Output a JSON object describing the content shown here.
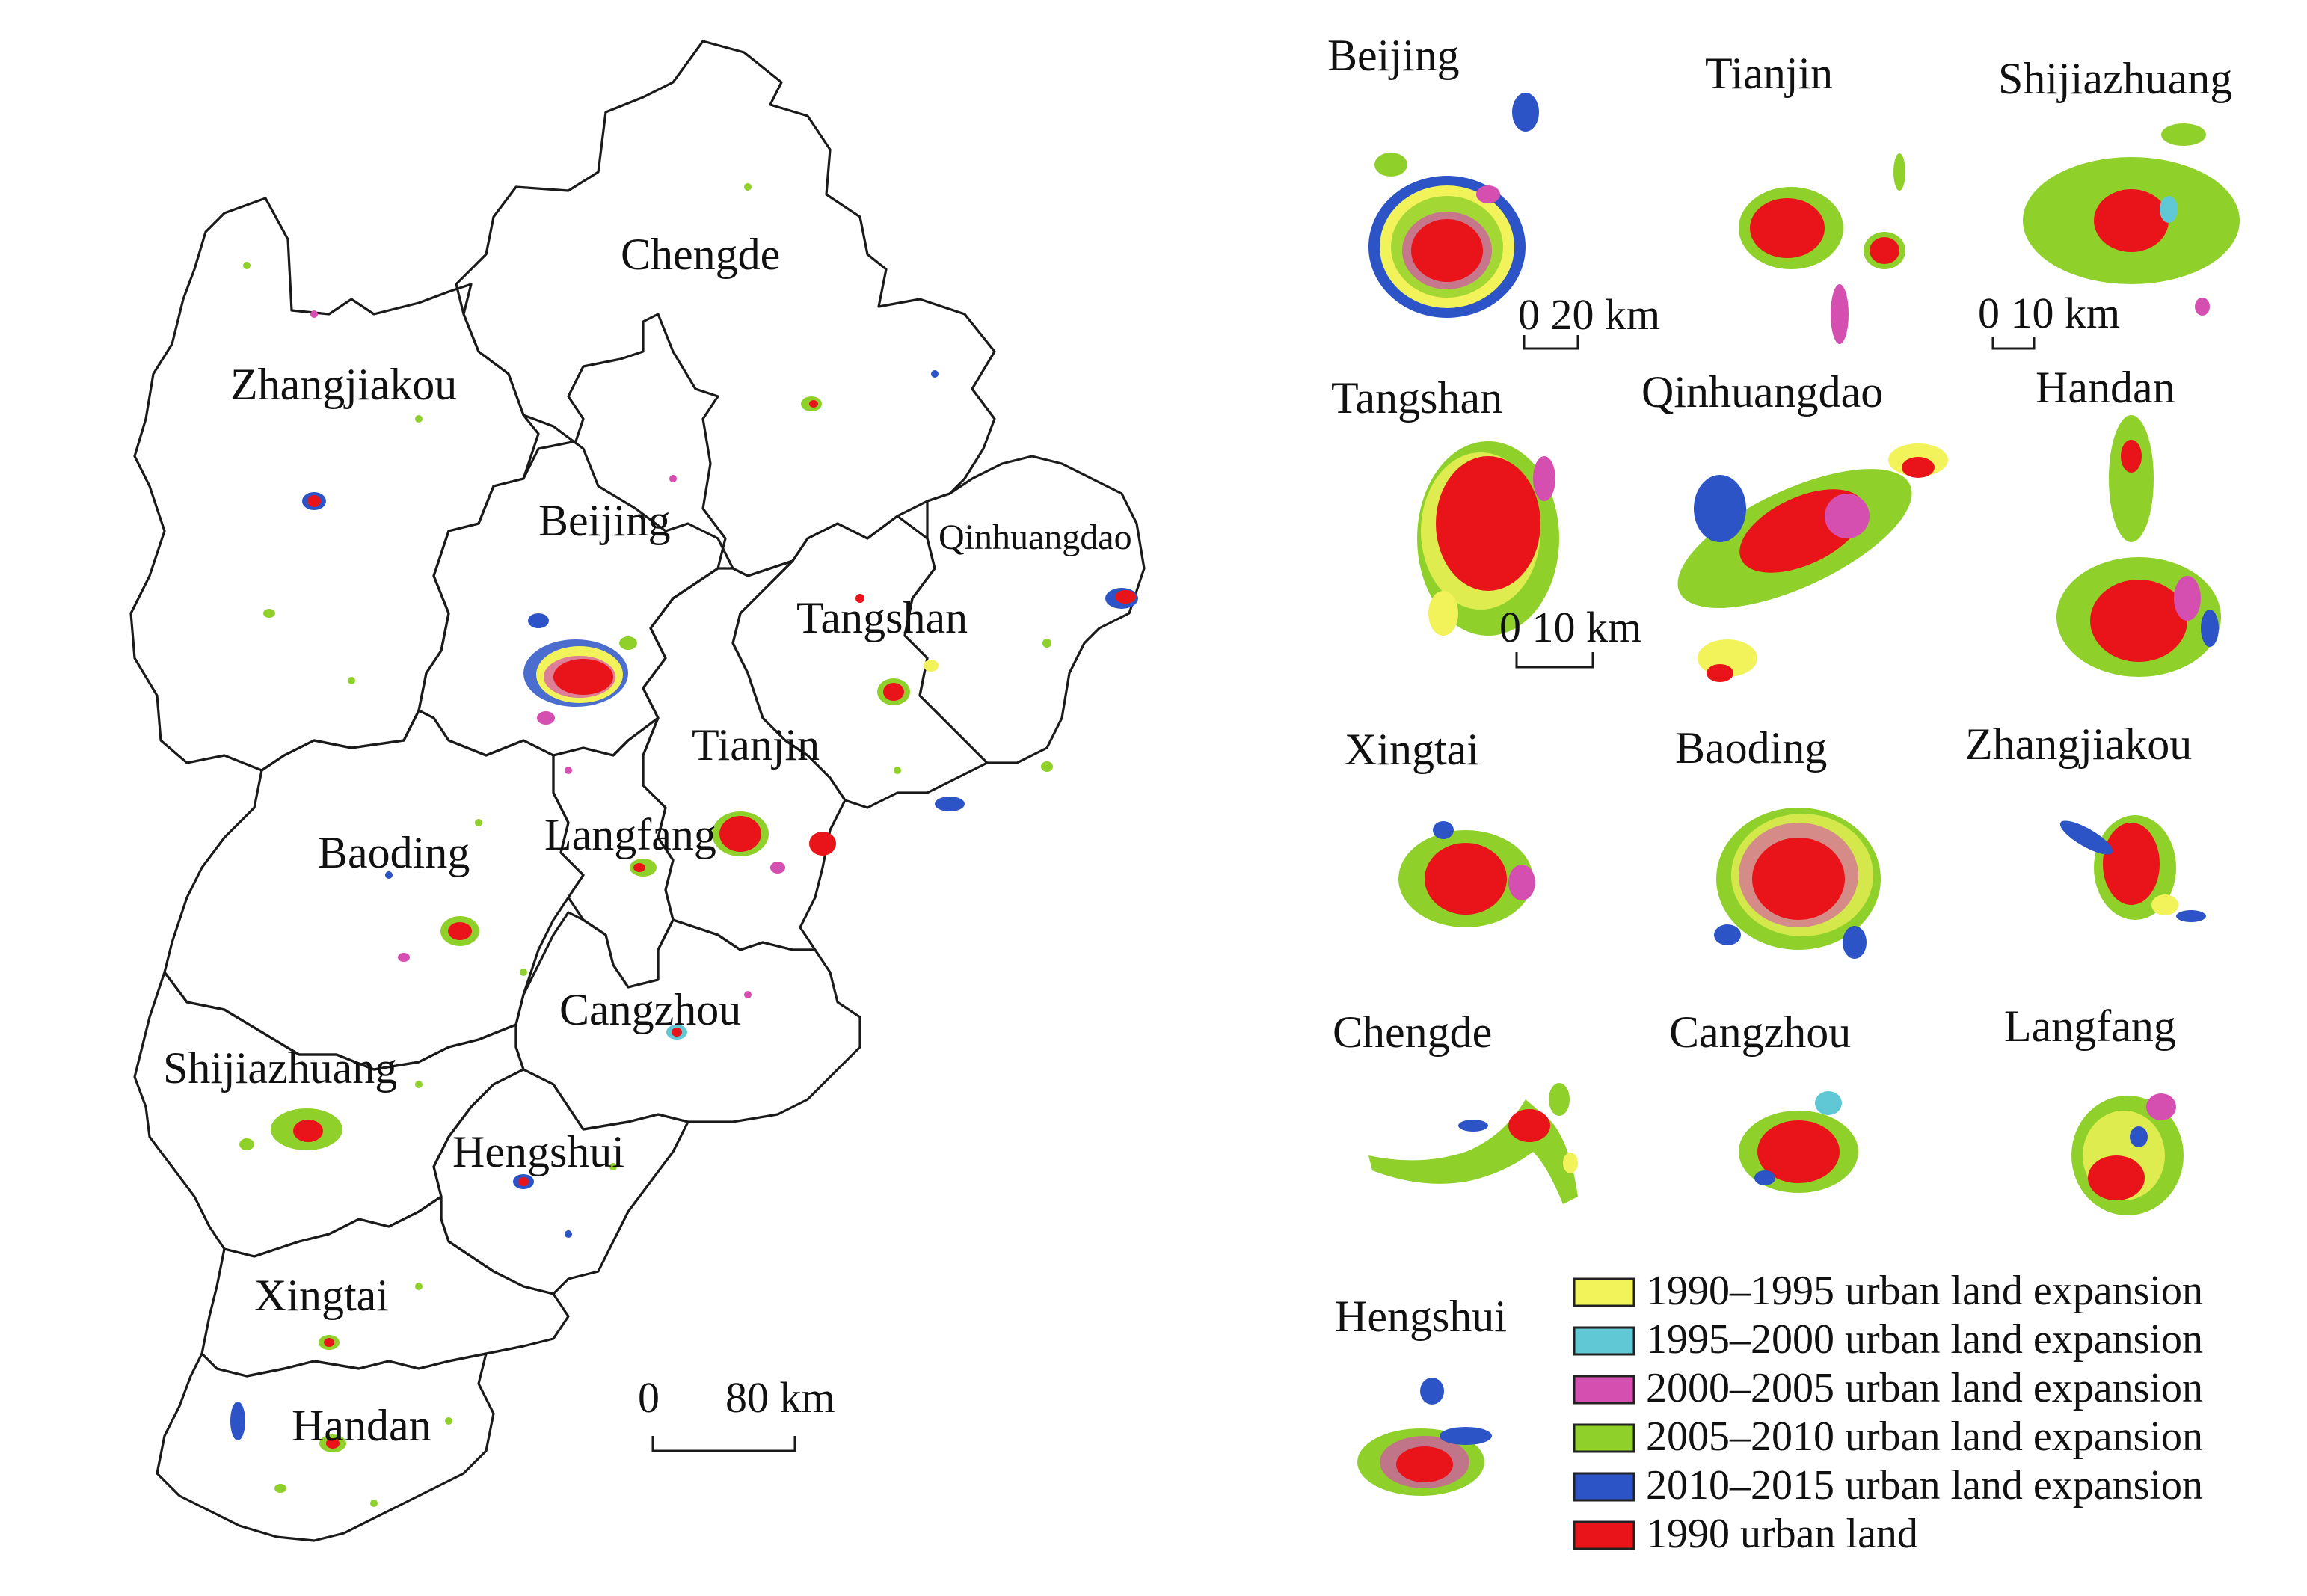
{
  "legend": {
    "items": [
      {
        "key": "p1990_1995",
        "label": "1990–1995 urban land expansion",
        "color": "#f2f25a"
      },
      {
        "key": "p1995_2000",
        "label": "1995–2000 urban land expansion",
        "color": "#5fc8d4"
      },
      {
        "key": "p2000_2005",
        "label": "2000–2005 urban land expansion",
        "color": "#d54fb0"
      },
      {
        "key": "p2005_2010",
        "label": "2005–2010 urban land expansion",
        "color": "#8fd12a"
      },
      {
        "key": "p2010_2015",
        "label": "2010–2015 urban land expansion",
        "color": "#2c54c6"
      },
      {
        "key": "u1990",
        "label": "1990 urban land",
        "color": "#e8141a"
      }
    ]
  },
  "regional_map": {
    "region_labels": {
      "chengde": "Chengde",
      "zhangjiakou": "Zhangjiakou",
      "beijing": "Beijing",
      "qinhuangdao": "Qinhuangdao",
      "tangshan": "Tangshan",
      "tianjin": "Tianjin",
      "langfang": "Langfang",
      "baoding": "Baoding",
      "cangzhou": "Cangzhou",
      "shijiazhuang": "Shijiazhuang",
      "hengshui": "Hengshui",
      "xingtai": "Xingtai",
      "handan": "Handan"
    },
    "scale_bar": {
      "zero": "0",
      "label": "80 km"
    }
  },
  "city_panels": {
    "beijing": {
      "title": "Beijing",
      "scale": "0 20 km"
    },
    "tianjin": {
      "title": "Tianjin"
    },
    "shijiazhuang": {
      "title": "Shijiazhuang",
      "scale": "0 10 km"
    },
    "tangshan": {
      "title": "Tangshan",
      "scale": "0  10 km"
    },
    "qinhuangdao": {
      "title": "Qinhuangdao"
    },
    "handan": {
      "title": "Handan"
    },
    "xingtai": {
      "title": "Xingtai"
    },
    "baoding": {
      "title": "Baoding"
    },
    "zhangjiakou": {
      "title": "Zhangjiakou"
    },
    "chengde": {
      "title": "Chengde"
    },
    "cangzhou": {
      "title": "Cangzhou"
    },
    "langfang": {
      "title": "Langfang"
    },
    "hengshui": {
      "title": "Hengshui"
    }
  }
}
